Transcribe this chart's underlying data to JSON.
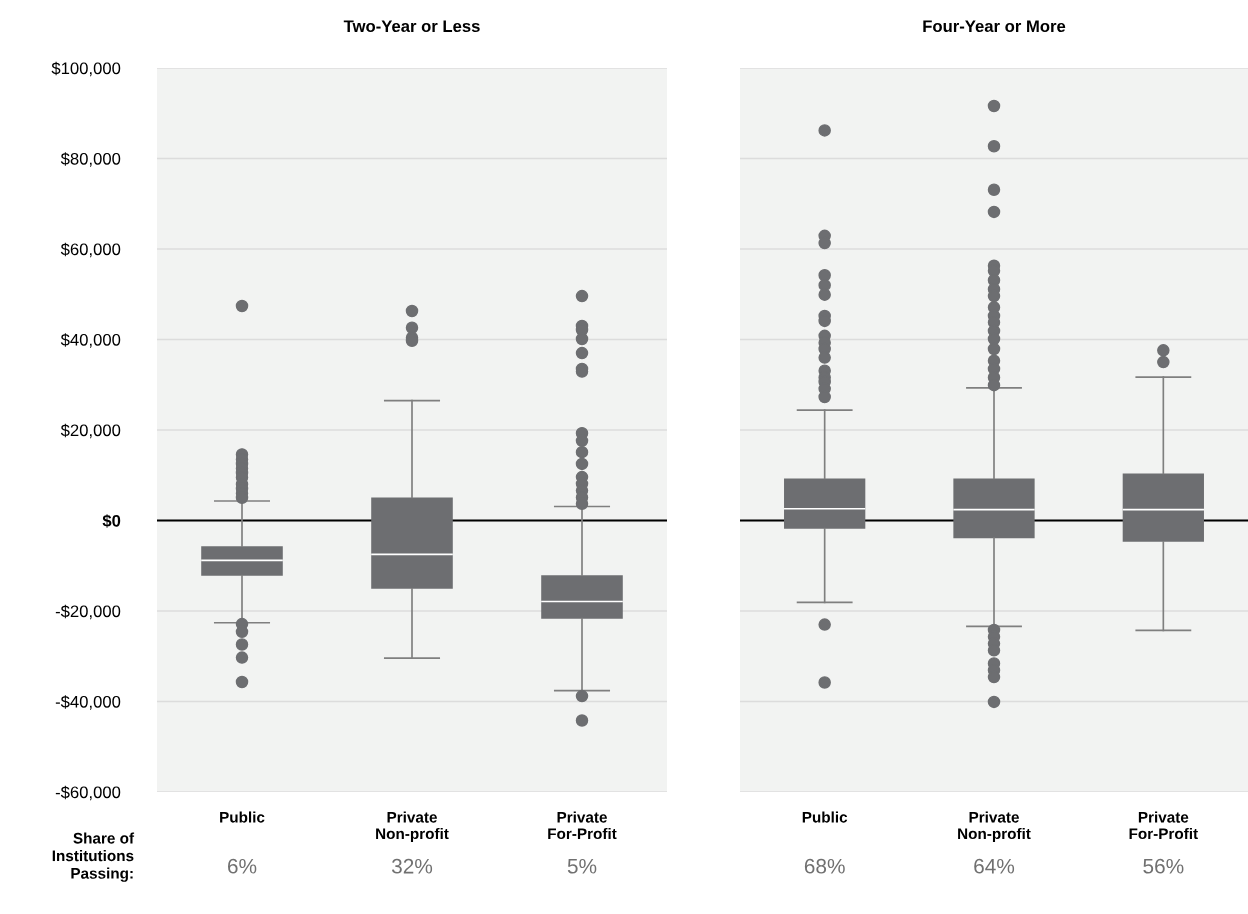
{
  "chart_data": [
    {
      "type": "box",
      "title": "Two-Year or Less",
      "categories": [
        "Public",
        "Private\nNon-profit",
        "Private\nFor-Profit"
      ],
      "color": "#6d6e71",
      "boxes": [
        {
          "low": -22600,
          "q1": -12200,
          "median": -8800,
          "q3": -5700,
          "high": 4300,
          "outliers": [
            47400,
            14600,
            13500,
            12500,
            11500,
            10500,
            9500,
            8000,
            7000,
            6000,
            5000,
            -22900,
            -24600,
            -27400,
            -30300,
            -35700
          ]
        },
        {
          "low": -30400,
          "q1": -15100,
          "median": -7500,
          "q3": 5100,
          "high": 26500,
          "outliers": [
            46300,
            42600,
            40400,
            39700
          ]
        },
        {
          "low": -37600,
          "q1": -21700,
          "median": -17900,
          "q3": -12100,
          "high": 3100,
          "outliers": [
            49600,
            43000,
            42100,
            40100,
            37000,
            33500,
            32900,
            19300,
            17600,
            15100,
            12500,
            9600,
            8100,
            6600,
            5100,
            3700,
            -38800,
            -44200
          ]
        }
      ],
      "ylim": [
        -60000,
        100000
      ],
      "yticks": [
        {
          "value": -60000,
          "label": "-$60,000"
        },
        {
          "value": -40000,
          "label": "-$40,000"
        },
        {
          "value": -20000,
          "label": "-$20,000"
        },
        {
          "value": 0,
          "label": "$0"
        },
        {
          "value": 20000,
          "label": "$20,000"
        },
        {
          "value": 40000,
          "label": "$40,000"
        },
        {
          "value": 60000,
          "label": "$60,000"
        },
        {
          "value": 80000,
          "label": "$80,000"
        },
        {
          "value": 100000,
          "label": "$100,000"
        }
      ],
      "grid": "y",
      "ref_lines": [
        {
          "axis": "y",
          "value": 0,
          "color": "#000000"
        }
      ],
      "annotations": [
        "Share of\nInstitutions\nPassing:",
        "6%",
        "32%",
        "5%"
      ]
    },
    {
      "type": "box",
      "title": "Four-Year or More",
      "categories": [
        "Public",
        "Private\nNon-profit",
        "Private\nFor-Profit"
      ],
      "color": "#6d6e71",
      "boxes": [
        {
          "low": -18100,
          "q1": -1800,
          "median": 2600,
          "q3": 9300,
          "high": 24400,
          "outliers": [
            86200,
            62900,
            61300,
            54200,
            52000,
            49900,
            45200,
            44100,
            40800,
            39300,
            37900,
            36000,
            33100,
            31600,
            30600,
            29100,
            27300,
            -23000,
            -35800
          ]
        },
        {
          "low": -23400,
          "q1": -3900,
          "median": 2400,
          "q3": 9300,
          "high": 29300,
          "outliers": [
            91600,
            82700,
            73100,
            68200,
            56300,
            55200,
            53100,
            51100,
            49600,
            47100,
            45200,
            43800,
            41900,
            40100,
            37900,
            35300,
            33500,
            31600,
            29900,
            -24200,
            -25700,
            -27200,
            -28700,
            -31600,
            -33100,
            -34600,
            -40100
          ]
        },
        {
          "low": -24300,
          "q1": -4700,
          "median": 2400,
          "q3": 10400,
          "high": 31700,
          "outliers": [
            37600,
            35000
          ]
        }
      ],
      "ylim": [
        -60000,
        100000
      ],
      "yticks": [
        -60000,
        -40000,
        -20000,
        0,
        20000,
        40000,
        60000,
        80000,
        100000
      ],
      "tick_labels": "x",
      "grid": "y",
      "ref_lines": [
        {
          "axis": "y",
          "value": 0,
          "color": "#000000"
        }
      ],
      "annotations": [
        "68%",
        "64%",
        "56%"
      ]
    }
  ]
}
